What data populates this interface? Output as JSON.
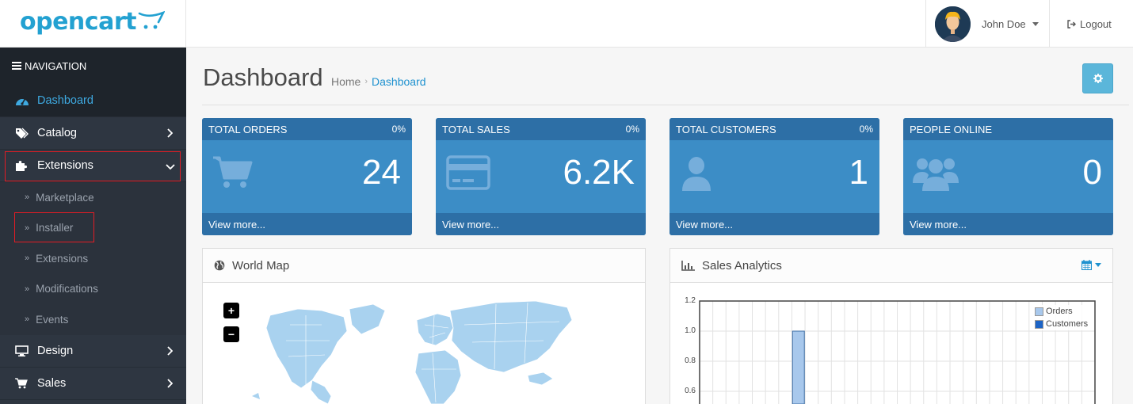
{
  "header": {
    "logo": "opencart",
    "user_name": "John Doe",
    "logout": "Logout"
  },
  "sidebar": {
    "heading": "NAVIGATION",
    "items": [
      {
        "label": "Dashboard",
        "icon": "dashboard-icon",
        "active": true
      },
      {
        "label": "Catalog",
        "icon": "tags-icon"
      },
      {
        "label": "Extensions",
        "icon": "puzzle-icon",
        "expanded": true
      },
      {
        "label": "Design",
        "icon": "desktop-icon"
      },
      {
        "label": "Sales",
        "icon": "cart-icon"
      }
    ],
    "sub_items": [
      "Marketplace",
      "Installer",
      "Extensions",
      "Modifications",
      "Events"
    ]
  },
  "page": {
    "title": "Dashboard",
    "breadcrumb": [
      "Home",
      "Dashboard"
    ]
  },
  "tiles": [
    {
      "title": "TOTAL ORDERS",
      "pct": "0%",
      "value": "24",
      "footer": "View more..."
    },
    {
      "title": "TOTAL SALES",
      "pct": "0%",
      "value": "6.2K",
      "footer": "View more..."
    },
    {
      "title": "TOTAL CUSTOMERS",
      "pct": "0%",
      "value": "1",
      "footer": "View more..."
    },
    {
      "title": "PEOPLE ONLINE",
      "pct": "",
      "value": "0",
      "footer": "View more..."
    }
  ],
  "panels": {
    "world_map": "World Map",
    "sales": "Sales Analytics"
  },
  "map_controls": {
    "zoom_in": "+",
    "zoom_out": "−"
  },
  "colors": {
    "accent": "#1e91cf",
    "tile": "#3c8dc6",
    "tile_dark": "#2d6fa6",
    "sidebar": "#2e3641",
    "orders": "#a8c8ec",
    "customers": "#1d64c6"
  },
  "chart_data": {
    "type": "bar",
    "title": "",
    "xlabel": "",
    "ylabel": "",
    "ylim": [
      0.6,
      1.2
    ],
    "y_ticks": [
      "1.2",
      "1.0",
      "0.8",
      "0.6"
    ],
    "grid": true,
    "legend": "top-right",
    "series": [
      {
        "name": "Orders",
        "values": [
          0,
          0,
          0,
          0,
          0,
          0,
          0,
          1,
          0,
          0,
          0,
          0,
          0,
          0,
          0,
          0,
          0,
          0,
          0,
          0,
          0,
          0,
          0,
          0,
          0,
          0,
          0,
          0,
          0,
          0
        ]
      },
      {
        "name": "Customers",
        "values": [
          0,
          0,
          0,
          0,
          0,
          0,
          0,
          0,
          0,
          0,
          0,
          0,
          0,
          0,
          0,
          0,
          0,
          0,
          0,
          0,
          0,
          0,
          0,
          0,
          0,
          0,
          0,
          0,
          0,
          0
        ]
      }
    ]
  }
}
